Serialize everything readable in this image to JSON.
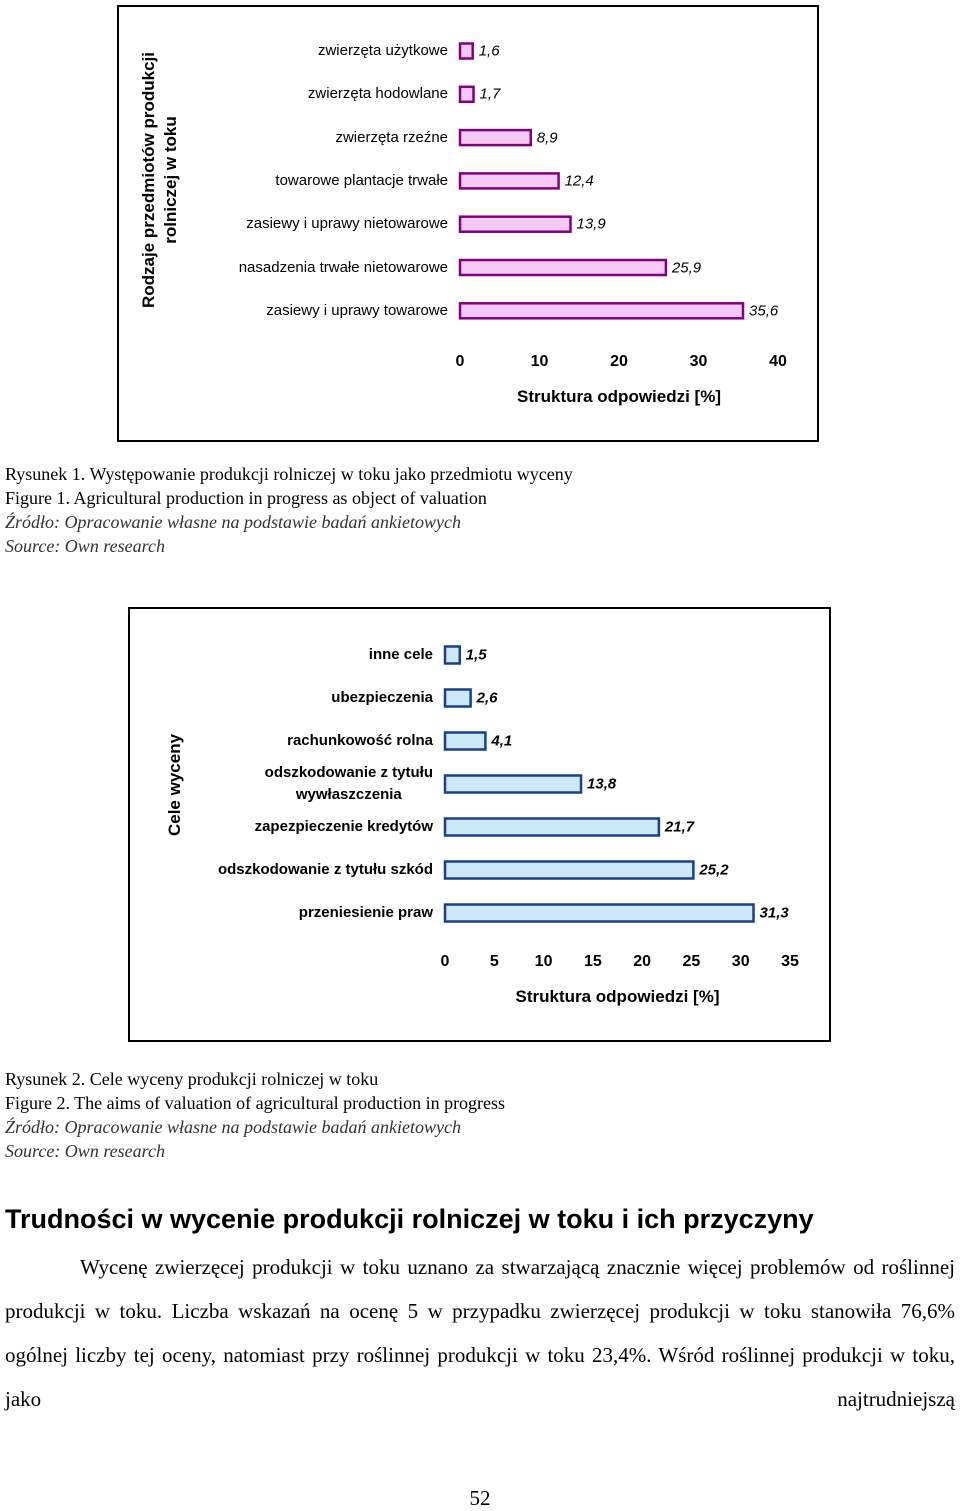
{
  "chart_data": [
    {
      "type": "bar",
      "orientation": "horizontal",
      "y_label": "Rodzaje przedmiotów produkcji\nrolniczej w toku",
      "x_label": "Struktura odpowiedzi [%]",
      "categories": [
        "zwierzęta użytkowe",
        "zwierzęta hodowlane",
        "zwierzęta rzeźne",
        "towarowe plantacje trwałe",
        "zasiewy i uprawy nietowarowe",
        "nasadzenia trwałe nietowarowe",
        "zasiewy i uprawy towarowe"
      ],
      "values": [
        1.6,
        1.7,
        8.9,
        12.4,
        13.9,
        25.9,
        35.6
      ],
      "value_labels": [
        "1,6",
        "1,7",
        "8,9",
        "12,4",
        "13,9",
        "25,9",
        "35,6"
      ],
      "color": "#f4c9f4",
      "edge_color": "#800080",
      "xlim": [
        0,
        40
      ],
      "xticks": [
        0,
        10,
        20,
        30,
        40
      ]
    },
    {
      "type": "bar",
      "orientation": "horizontal",
      "y_label": "Cele wyceny",
      "x_label": "Struktura odpowiedzi [%]",
      "categories": [
        "inne cele",
        "ubezpieczenia",
        "rachunkowość rolna",
        "odszkodowanie z tytułu\nwywłaszczenia",
        "zapezpieczenie kredytów",
        "odszkodowanie z tytułu szkód",
        "przeniesienie praw"
      ],
      "values": [
        1.5,
        2.6,
        4.1,
        13.8,
        21.7,
        25.2,
        31.3
      ],
      "value_labels": [
        "1,5",
        "2,6",
        "4,1",
        "13,8",
        "21,7",
        "25,2",
        "31,3"
      ],
      "color": "#cde8f8",
      "edge_color": "#1b3f8c",
      "xlim": [
        0,
        35
      ],
      "xticks": [
        0,
        5,
        10,
        15,
        20,
        25,
        30,
        35
      ]
    }
  ],
  "figure_captions": [
    {
      "polish": "Rysunek 1. Występowanie produkcji rolniczej w toku jako przedmiotu wyceny",
      "english": "Figure 1. Agricultural production in progress as object of valuation",
      "source_pl": "Źródło: Opracowanie własne na podstawie badań ankietowych",
      "source_en": "Source: Own research"
    },
    {
      "polish": "Rysunek 2. Cele wyceny produkcji rolniczej w toku",
      "english": "Figure 2. The aims of valuation of agricultural production in progress",
      "source_pl": "Źródło: Opracowanie własne na podstawie badań ankietowych",
      "source_en": "Source: Own research"
    }
  ],
  "section": {
    "heading": "Trudności w wycenie produkcji rolniczej w toku i ich przyczyny",
    "paragraph": "Wycenę zwierzęcej produkcji w toku uznano za stwarzającą znacznie więcej problemów od roślinnej produkcji w toku. Liczba wskazań na ocenę 5 w przypadku zwierzęcej produkcji w toku stanowiła 76,6% ogólnej liczby tej oceny, natomiast przy roślinnej produkcji w toku 23,4%. Wśród roślinnej produkcji w toku, jako najtrudniejszą"
  },
  "page_number": "52"
}
